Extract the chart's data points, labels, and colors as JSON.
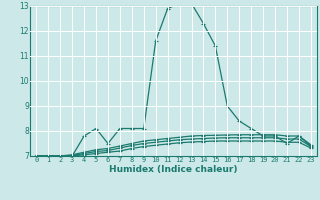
{
  "xlabel": "Humidex (Indice chaleur)",
  "x_values": [
    0,
    1,
    2,
    3,
    4,
    5,
    6,
    7,
    8,
    9,
    10,
    11,
    12,
    13,
    14,
    15,
    16,
    17,
    18,
    19,
    20,
    21,
    22,
    23
  ],
  "line1": [
    7.0,
    7.0,
    7.0,
    7.0,
    7.8,
    8.1,
    7.5,
    8.1,
    8.1,
    8.1,
    11.6,
    12.9,
    13.1,
    13.1,
    12.3,
    11.4,
    9.0,
    8.4,
    8.1,
    7.8,
    7.8,
    7.5,
    7.8,
    7.4
  ],
  "line2": [
    7.0,
    7.0,
    7.0,
    7.05,
    7.15,
    7.25,
    7.3,
    7.4,
    7.5,
    7.6,
    7.65,
    7.7,
    7.75,
    7.8,
    7.82,
    7.83,
    7.84,
    7.85,
    7.85,
    7.85,
    7.85,
    7.8,
    7.8,
    7.45
  ],
  "line3": [
    7.0,
    7.0,
    7.0,
    7.02,
    7.1,
    7.18,
    7.22,
    7.32,
    7.42,
    7.5,
    7.55,
    7.6,
    7.65,
    7.68,
    7.7,
    7.72,
    7.73,
    7.73,
    7.73,
    7.73,
    7.73,
    7.68,
    7.68,
    7.38
  ],
  "line4": [
    7.0,
    7.0,
    7.0,
    7.0,
    7.05,
    7.1,
    7.15,
    7.2,
    7.3,
    7.38,
    7.43,
    7.48,
    7.53,
    7.56,
    7.58,
    7.6,
    7.6,
    7.6,
    7.6,
    7.6,
    7.6,
    7.55,
    7.55,
    7.32
  ],
  "line_color": "#1a7a6e",
  "bg_color": "#cce8e8",
  "grid_color": "#ffffff",
  "ylim": [
    7,
    13
  ],
  "yticks": [
    7,
    8,
    9,
    10,
    11,
    12,
    13
  ],
  "xlim": [
    -0.5,
    23.5
  ],
  "xticks": [
    0,
    1,
    2,
    3,
    4,
    5,
    6,
    7,
    8,
    9,
    10,
    11,
    12,
    13,
    14,
    15,
    16,
    17,
    18,
    19,
    20,
    21,
    22,
    23
  ],
  "tick_fontsize": 5.0,
  "xlabel_fontsize": 6.5,
  "marker_size": 3.5,
  "line_width": 0.9
}
